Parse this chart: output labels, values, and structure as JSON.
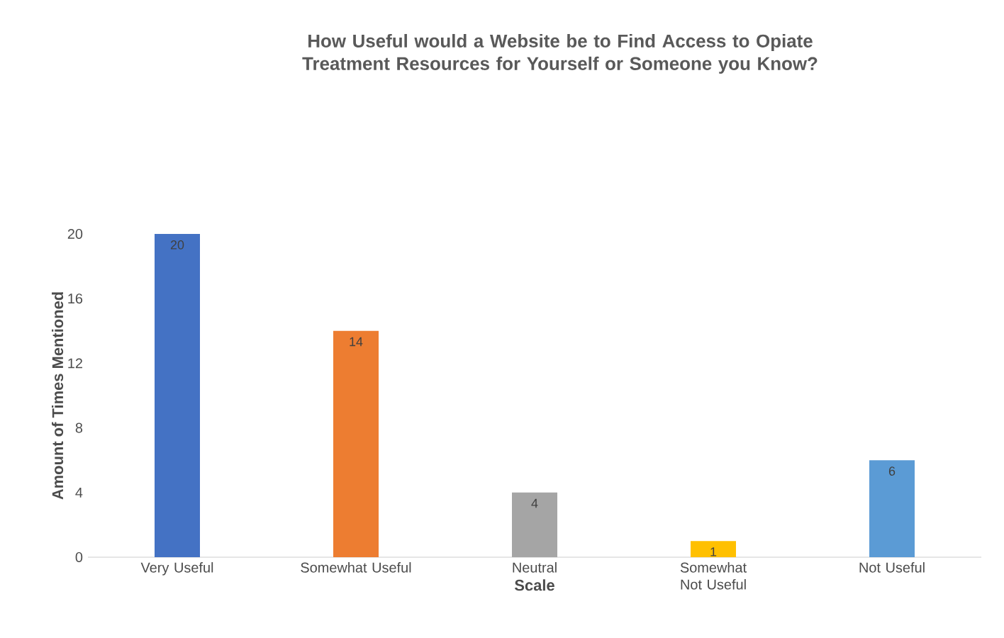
{
  "chart_data": {
    "type": "bar",
    "title": "How Useful would a Website be to Find Access to Opiate Treatment Resources for Yourself or Someone you Know?",
    "xlabel": "Scale",
    "ylabel": "Amount of Times Mentioned",
    "categories": [
      "Very Useful",
      "Somewhat Useful",
      "Neutral",
      "Somewhat Not Useful",
      "Not Useful"
    ],
    "values": [
      20,
      14,
      4,
      1,
      6
    ],
    "colors": [
      "#4472c4",
      "#ed7d31",
      "#a5a5a5",
      "#ffc000",
      "#5b9bd5"
    ],
    "ylim": [
      0,
      20
    ],
    "yticks": [
      0,
      4,
      8,
      12,
      16,
      20
    ],
    "data_labels": true
  }
}
